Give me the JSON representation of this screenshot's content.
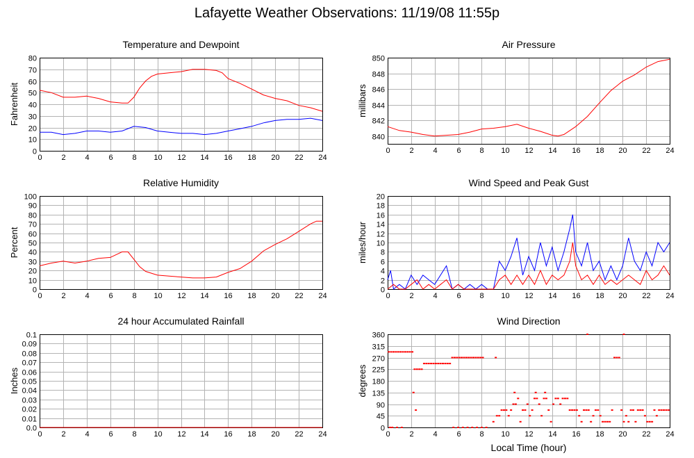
{
  "title": "Lafayette Weather Observations: 11/19/08 11:55p",
  "common_xlabel": "Local Time (hour)",
  "colors": {
    "red": "#ff0000",
    "blue": "#0000ff",
    "grid": "#b3b3b3"
  },
  "chart_data": [
    {
      "id": "temp",
      "type": "line",
      "title": "Temperature and Dewpoint",
      "xlabel": "",
      "ylabel": "Fahrenheit",
      "xlim": [
        0,
        24
      ],
      "ylim": [
        0,
        80
      ],
      "xticks": [
        0,
        2,
        4,
        6,
        8,
        10,
        12,
        14,
        16,
        18,
        20,
        22,
        24
      ],
      "yticks": [
        0,
        10,
        20,
        30,
        40,
        50,
        60,
        70,
        80
      ],
      "grid": true,
      "series": [
        {
          "color": "#ff0000",
          "x": [
            0,
            1,
            2,
            3,
            4,
            5,
            6,
            7,
            7.5,
            8,
            8.5,
            9,
            9.5,
            10,
            11,
            12,
            13,
            14,
            15,
            15.5,
            16,
            17,
            18,
            19,
            20,
            21,
            22,
            23,
            24
          ],
          "y": [
            52,
            50,
            46,
            46,
            47,
            45,
            42,
            41,
            41,
            46,
            54,
            60,
            64,
            66,
            67,
            68,
            70,
            70,
            69,
            67,
            62,
            58,
            53,
            48,
            45,
            43,
            39,
            37,
            34
          ]
        },
        {
          "color": "#0000ff",
          "x": [
            0,
            1,
            2,
            3,
            4,
            5,
            6,
            7,
            8,
            9,
            10,
            11,
            12,
            13,
            14,
            15,
            16,
            17,
            18,
            19,
            20,
            21,
            22,
            23,
            24
          ],
          "y": [
            16,
            16,
            14,
            15,
            17,
            17,
            16,
            17,
            21,
            20,
            17,
            16,
            15,
            15,
            14,
            15,
            17,
            19,
            21,
            24,
            26,
            27,
            27,
            28,
            26
          ]
        }
      ]
    },
    {
      "id": "pressure",
      "type": "line",
      "title": "Air Pressure",
      "xlabel": "",
      "ylabel": "millibars",
      "xlim": [
        0,
        24
      ],
      "ylim": [
        839,
        850
      ],
      "xticks": [
        0,
        2,
        4,
        6,
        8,
        10,
        12,
        14,
        16,
        18,
        20,
        22,
        24
      ],
      "yticks": [
        840,
        842,
        844,
        846,
        848,
        850
      ],
      "grid": true,
      "series": [
        {
          "color": "#ff0000",
          "x": [
            0,
            1,
            2,
            3,
            4,
            5,
            6,
            7,
            8,
            9,
            10,
            11,
            12,
            13,
            14,
            14.5,
            15,
            16,
            17,
            18,
            19,
            20,
            21,
            22,
            23,
            24
          ],
          "y": [
            841.2,
            840.7,
            840.5,
            840.2,
            840.0,
            840.1,
            840.2,
            840.5,
            840.9,
            841.0,
            841.2,
            841.5,
            841.0,
            840.6,
            840.1,
            840.0,
            840.2,
            841.2,
            842.5,
            844.2,
            845.8,
            847.0,
            847.8,
            848.8,
            849.5,
            849.8
          ]
        }
      ]
    },
    {
      "id": "rh",
      "type": "line",
      "title": "Relative Humidity",
      "xlabel": "",
      "ylabel": "Percent",
      "xlim": [
        0,
        24
      ],
      "ylim": [
        0,
        100
      ],
      "xticks": [
        0,
        2,
        4,
        6,
        8,
        10,
        12,
        14,
        16,
        18,
        20,
        22,
        24
      ],
      "yticks": [
        0,
        10,
        20,
        30,
        40,
        50,
        60,
        70,
        80,
        90,
        100
      ],
      "grid": true,
      "series": [
        {
          "color": "#ff0000",
          "x": [
            0,
            1,
            2,
            3,
            4,
            5,
            6,
            7,
            7.5,
            8,
            8.5,
            9,
            10,
            11,
            12,
            13,
            14,
            15,
            16,
            17,
            18,
            19,
            20,
            21,
            22,
            23,
            23.5,
            24
          ],
          "y": [
            25,
            28,
            30,
            28,
            30,
            33,
            34,
            40,
            40,
            32,
            24,
            19,
            15,
            14,
            13,
            12,
            12,
            13,
            18,
            22,
            30,
            41,
            48,
            54,
            62,
            70,
            73,
            73
          ]
        }
      ]
    },
    {
      "id": "wind",
      "type": "line",
      "title": "Wind Speed and Peak Gust",
      "xlabel": "",
      "ylabel": "miles/hour",
      "xlim": [
        0,
        24
      ],
      "ylim": [
        0,
        20
      ],
      "xticks": [
        0,
        2,
        4,
        6,
        8,
        10,
        12,
        14,
        16,
        18,
        20,
        22,
        24
      ],
      "yticks": [
        0,
        2,
        4,
        6,
        8,
        10,
        12,
        14,
        16,
        18,
        20
      ],
      "grid": true,
      "series": [
        {
          "color": "#0000ff",
          "x": [
            0,
            0.25,
            0.5,
            1,
            1.5,
            2,
            2.5,
            3,
            3.5,
            4,
            4.5,
            5,
            5.5,
            6,
            6.5,
            7,
            7.5,
            8,
            8.5,
            9,
            9.5,
            10,
            10.5,
            11,
            11.5,
            12,
            12.5,
            13,
            13.5,
            14,
            14.5,
            15,
            15.5,
            15.75,
            16,
            16.5,
            17,
            17.5,
            18,
            18.5,
            19,
            19.5,
            20,
            20.5,
            21,
            21.5,
            22,
            22.5,
            23,
            23.5,
            24
          ],
          "y": [
            2,
            4,
            0,
            1,
            0,
            3,
            1,
            3,
            2,
            1,
            3,
            5,
            0,
            1,
            0,
            1,
            0,
            1,
            0,
            0,
            6,
            4,
            7,
            11,
            3,
            7,
            4,
            10,
            5,
            9,
            4,
            8,
            13,
            16,
            8,
            5,
            10,
            4,
            6,
            2,
            5,
            2,
            5,
            11,
            6,
            4,
            8,
            5,
            10,
            8,
            10
          ]
        },
        {
          "color": "#ff0000",
          "x": [
            0,
            0.5,
            1,
            1.5,
            2,
            2.5,
            3,
            3.5,
            4,
            4.5,
            5,
            5.5,
            6,
            6.5,
            7,
            7.5,
            8,
            8.5,
            9,
            9.5,
            10,
            10.5,
            11,
            11.5,
            12,
            12.5,
            13,
            13.5,
            14,
            14.5,
            15,
            15.5,
            15.75,
            16,
            16.5,
            17,
            17.5,
            18,
            18.5,
            19,
            19.5,
            20,
            20.5,
            21,
            21.5,
            22,
            22.5,
            23,
            23.5,
            24
          ],
          "y": [
            0,
            1,
            0,
            0,
            1,
            2,
            0,
            1,
            0,
            1,
            2,
            0,
            1,
            0,
            0,
            0,
            0,
            0,
            0,
            2,
            3,
            1,
            3,
            1,
            3,
            1,
            4,
            1,
            3,
            2,
            3,
            6,
            10,
            5,
            2,
            3,
            1,
            3,
            1,
            2,
            1,
            2,
            3,
            2,
            1,
            4,
            2,
            3,
            5,
            3
          ]
        }
      ]
    },
    {
      "id": "rain",
      "type": "line",
      "title": "24 hour Accumulated Rainfall",
      "xlabel": "",
      "ylabel": "Inches",
      "xlim": [
        0,
        24
      ],
      "ylim": [
        0,
        0.1
      ],
      "xticks": [
        0,
        2,
        4,
        6,
        8,
        10,
        12,
        14,
        16,
        18,
        20,
        22,
        24
      ],
      "yticks": [
        "0.0",
        "0.01",
        "0.02",
        "0.03",
        "0.04",
        "0.05",
        "0.06",
        "0.07",
        "0.08",
        "0.09",
        "0.1"
      ],
      "grid": true,
      "series": [
        {
          "color": "#ff0000",
          "x": [
            0,
            24
          ],
          "y": [
            0,
            0
          ]
        }
      ]
    },
    {
      "id": "winddir",
      "type": "scatter",
      "title": "Wind Direction",
      "xlabel": "Local Time (hour)",
      "ylabel": "degrees",
      "xlim": [
        0,
        24
      ],
      "ylim": [
        0,
        360
      ],
      "xticks": [
        0,
        2,
        4,
        6,
        8,
        10,
        12,
        14,
        16,
        18,
        20,
        22,
        24
      ],
      "yticks": [
        0,
        45,
        90,
        135,
        180,
        225,
        270,
        315,
        360
      ],
      "grid": true,
      "series": [
        {
          "color": "#ff0000",
          "x": [
            0.1,
            0.3,
            0.5,
            0.7,
            0.9,
            1.1,
            1.3,
            1.5,
            1.7,
            1.9,
            2.1,
            0.2,
            0.4,
            0.8,
            1.2,
            2.3,
            2.5,
            2.7,
            2.9,
            3.1,
            3.3,
            3.5,
            3.7,
            3.9,
            4.1,
            4.3,
            4.5,
            4.7,
            4.9,
            5.1,
            5.3,
            5.5,
            5.7,
            5.9,
            6.1,
            6.3,
            6.5,
            6.7,
            6.9,
            7.1,
            7.3,
            7.5,
            7.7,
            7.9,
            8.1,
            5.6,
            6.0,
            6.4,
            6.8,
            7.2,
            7.6,
            8.0,
            8.4,
            9.2,
            9.0,
            9.3,
            9.5,
            9.7,
            9.9,
            10.1,
            10.3,
            10.5,
            10.7,
            10.9,
            11.1,
            11.3,
            11.5,
            11.7,
            11.9,
            12.1,
            12.3,
            12.5,
            12.7,
            12.9,
            13.1,
            13.3,
            13.5,
            13.7,
            13.9,
            14.1,
            14.3,
            14.5,
            14.7,
            14.9,
            15.1,
            15.3,
            15.5,
            15.7,
            15.9,
            16.1,
            16.3,
            16.5,
            16.7,
            16.9,
            17.1,
            17.3,
            17.5,
            17.7,
            17.9,
            18.1,
            18.3,
            18.5,
            18.7,
            18.9,
            19.1,
            19.3,
            19.5,
            19.7,
            19.9,
            20.1,
            20.3,
            20.5,
            20.7,
            20.9,
            21.1,
            21.3,
            21.5,
            21.7,
            21.9,
            22.1,
            22.3,
            22.5,
            22.7,
            22.9,
            23.1,
            23.3,
            23.5,
            23.7,
            23.9,
            17.0,
            20.1,
            2.2,
            2.4,
            10.8,
            12.6,
            13.4
          ],
          "y": [
            292,
            292,
            292,
            292,
            292,
            292,
            292,
            292,
            292,
            292,
            292,
            0,
            0,
            0,
            0,
            225,
            225,
            225,
            225,
            247,
            247,
            247,
            247,
            247,
            247,
            247,
            247,
            247,
            247,
            247,
            247,
            270,
            270,
            270,
            270,
            270,
            270,
            270,
            270,
            270,
            270,
            270,
            270,
            270,
            270,
            0,
            0,
            0,
            0,
            0,
            0,
            0,
            0,
            270,
            22,
            45,
            45,
            67,
            67,
            67,
            45,
            67,
            90,
            90,
            112,
            22,
            67,
            67,
            90,
            45,
            67,
            112,
            112,
            90,
            45,
            112,
            112,
            67,
            22,
            90,
            112,
            112,
            90,
            112,
            112,
            112,
            67,
            67,
            67,
            67,
            45,
            22,
            67,
            67,
            67,
            22,
            45,
            67,
            67,
            45,
            22,
            22,
            22,
            22,
            67,
            270,
            270,
            270,
            67,
            22,
            45,
            22,
            67,
            67,
            22,
            67,
            67,
            67,
            45,
            22,
            22,
            22,
            67,
            45,
            67,
            67,
            67,
            67,
            67,
            360,
            360,
            135,
            67,
            135,
            135,
            135
          ]
        }
      ]
    }
  ]
}
